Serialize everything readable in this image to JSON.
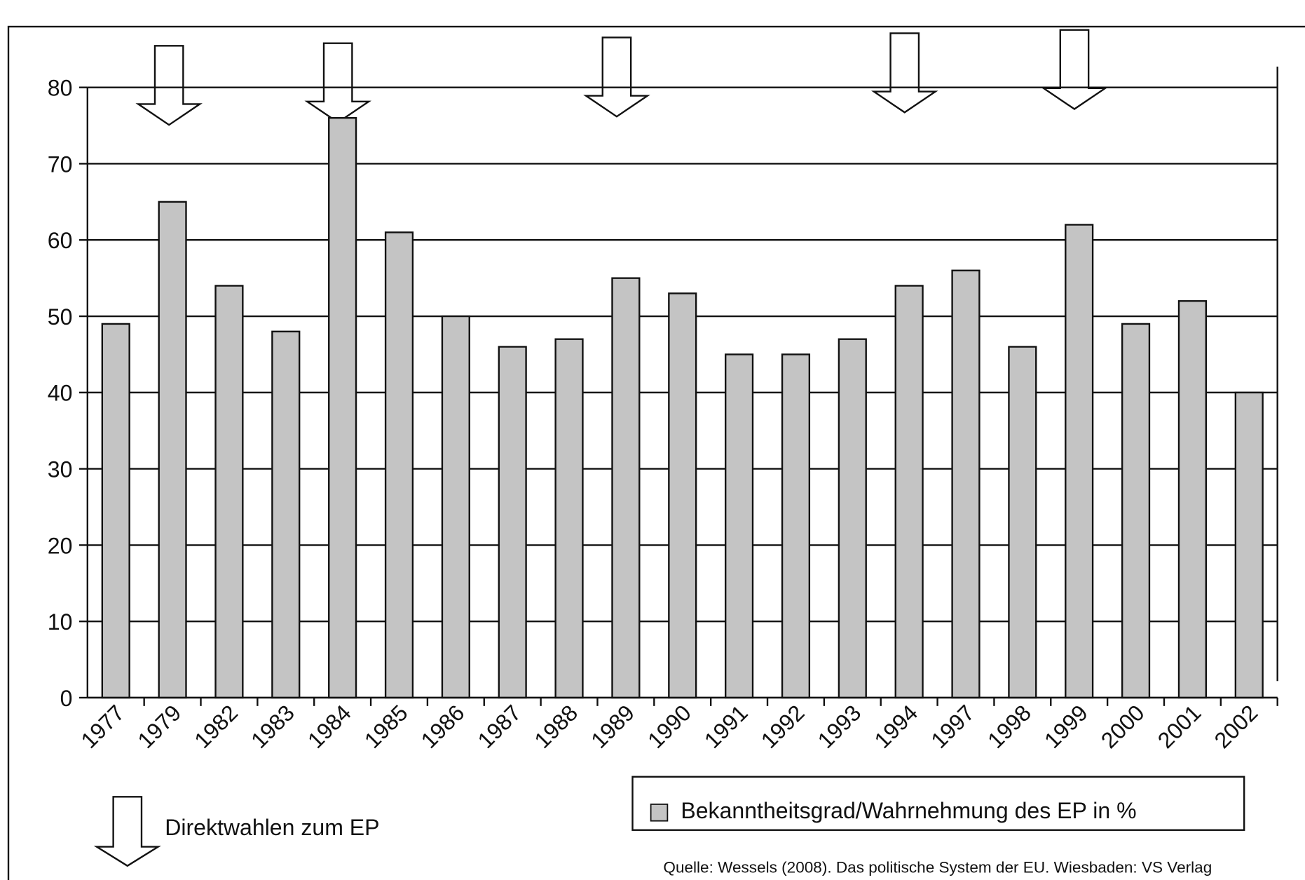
{
  "chart_data": {
    "type": "bar",
    "categories": [
      "1977",
      "1979",
      "1982",
      "1983",
      "1984",
      "1985",
      "1986",
      "1987",
      "1988",
      "1989",
      "1990",
      "1991",
      "1992",
      "1993",
      "1994",
      "1997",
      "1998",
      "1999",
      "2000",
      "2001",
      "2002"
    ],
    "values": [
      49,
      65,
      54,
      48,
      76,
      61,
      50,
      46,
      47,
      55,
      53,
      45,
      45,
      47,
      54,
      56,
      46,
      62,
      49,
      52,
      40
    ],
    "color": "#c4c4c4",
    "ylim": [
      0,
      80
    ],
    "yticks": [
      0,
      10,
      20,
      30,
      40,
      50,
      60,
      70,
      80
    ],
    "grid": true,
    "legend": "Bekanntheitsgrad/Wahrnehmung des EP in %",
    "annotation": "Direktwahlen zum EP",
    "source": "Quelle: Wessels (2008). Das politische System der EU. Wiesbaden: VS Verlag"
  }
}
